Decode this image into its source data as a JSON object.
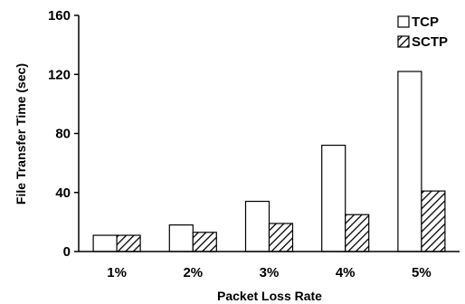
{
  "chart_data": {
    "type": "bar",
    "title": "",
    "xlabel": "Packet Loss Rate",
    "ylabel": "File Transfer Time (sec)",
    "categories": [
      "1%",
      "2%",
      "3%",
      "4%",
      "5%"
    ],
    "series": [
      {
        "name": "TCP",
        "values": [
          11,
          18,
          34,
          72,
          122
        ],
        "fill": "white"
      },
      {
        "name": "SCTP",
        "values": [
          11,
          13,
          19,
          25,
          41
        ],
        "fill": "hatched"
      }
    ],
    "ylim": [
      0,
      160
    ],
    "yticks": [
      "0",
      "40",
      "80",
      "120",
      "160"
    ],
    "grid": false,
    "legend": "top-right",
    "colors": {
      "bar_stroke": "#000000",
      "hatch": "#000000",
      "background": "#ffffff"
    }
  }
}
